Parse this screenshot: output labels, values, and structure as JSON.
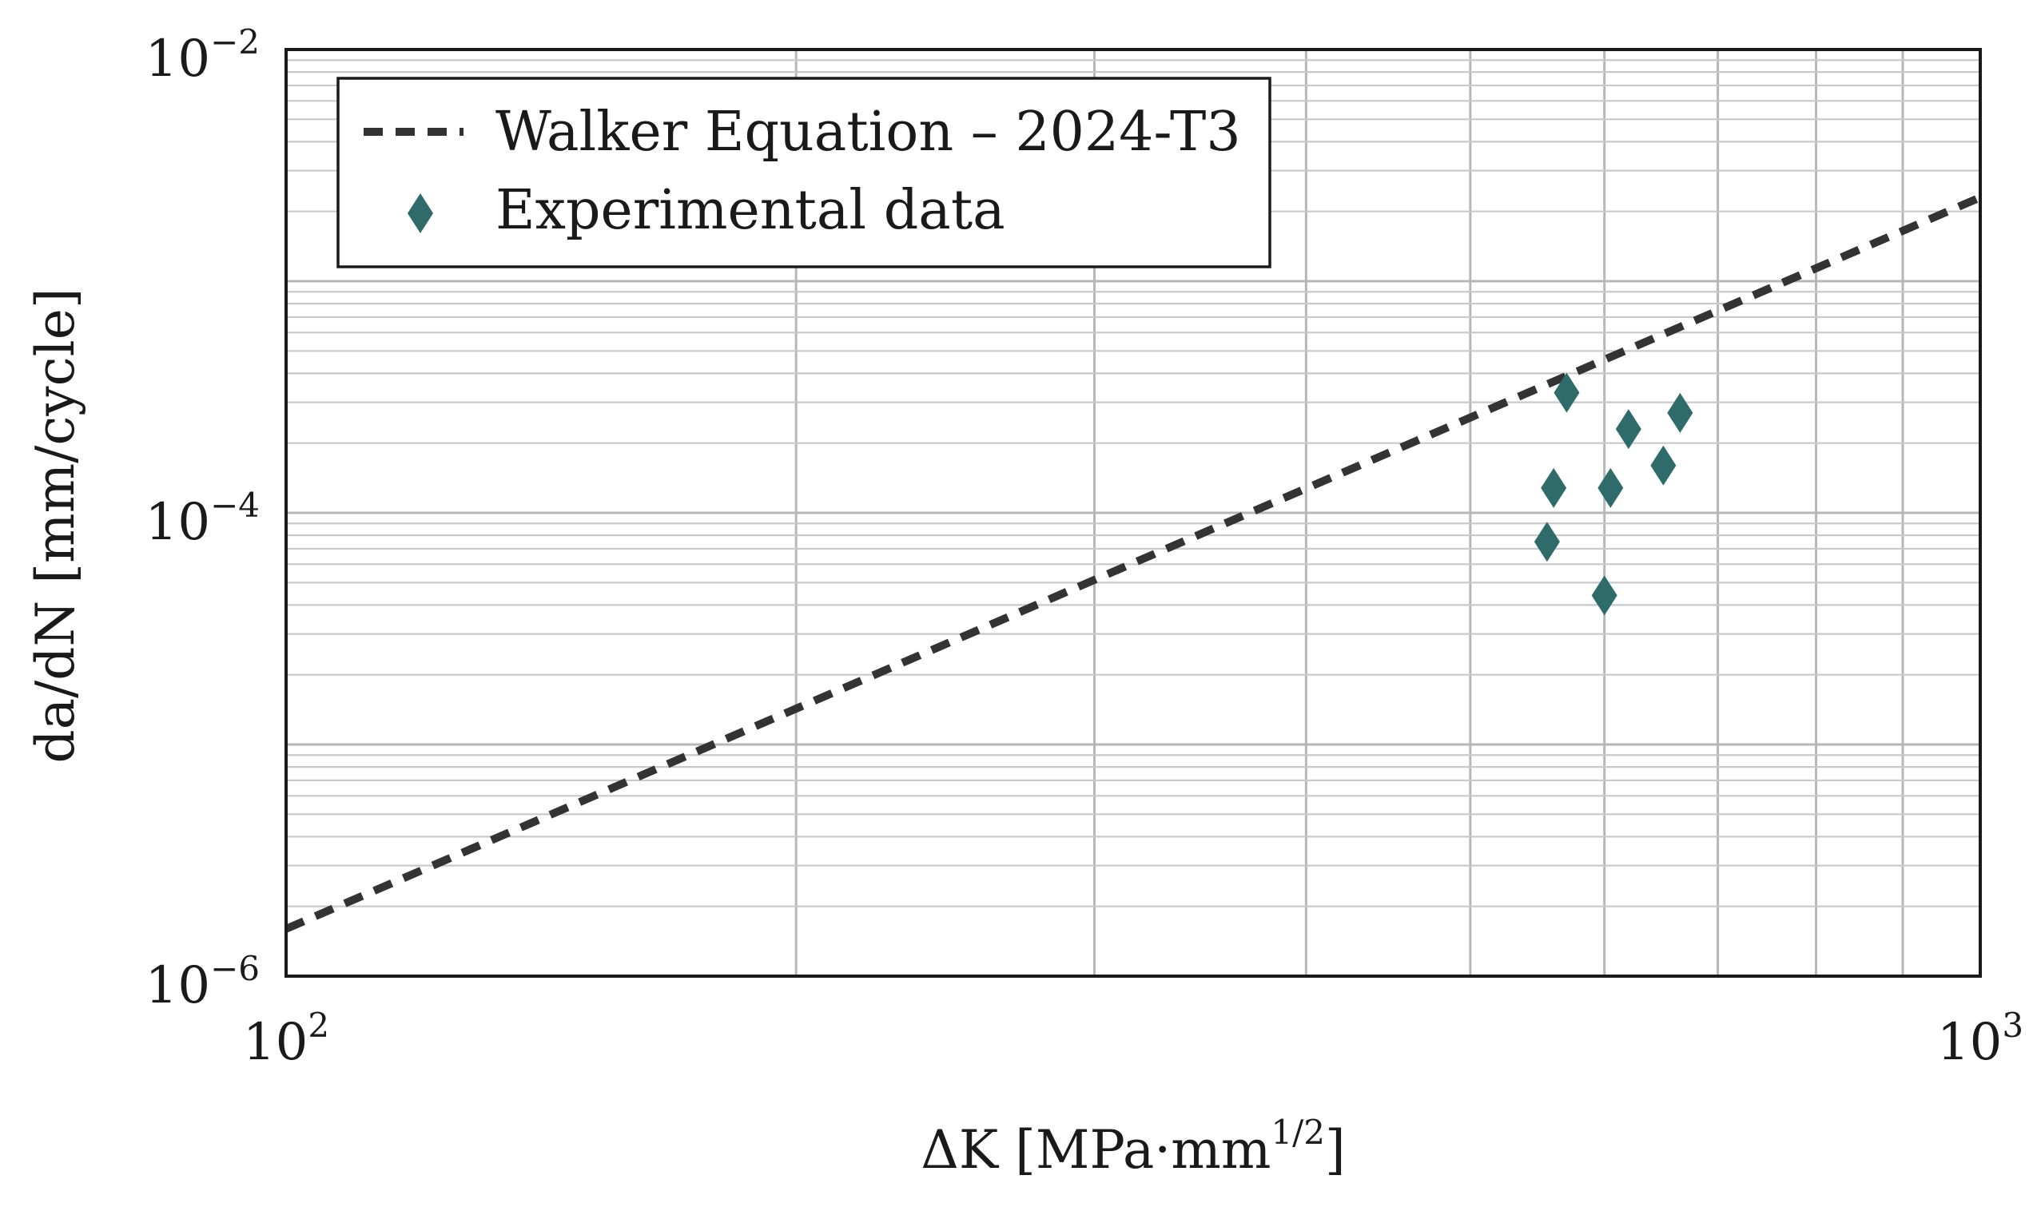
{
  "chart_data": {
    "type": "scatter",
    "x_scale": "log",
    "y_scale": "log",
    "xlim": [
      100,
      1000
    ],
    "ylim": [
      1e-06,
      0.01
    ],
    "grid": true,
    "xlabel": "ΔK [MPa·mm",
    "xlabel_sup": "1/2",
    "xlabel_end": "]",
    "ylabel": "da/dN [mm/cycle]",
    "x_ticks": [
      {
        "base": "10",
        "exp": "2",
        "value": 100
      },
      {
        "base": "10",
        "exp": "3",
        "value": 1000
      }
    ],
    "y_ticks": [
      {
        "base": "10",
        "exp": "−6",
        "value": 1e-06
      },
      {
        "base": "10",
        "exp": "−4",
        "value": 0.0001
      },
      {
        "base": "10",
        "exp": "−2",
        "value": 0.01
      }
    ],
    "legend_position": "top-left",
    "series": [
      {
        "name": "Walker Equation – 2024-T3",
        "kind": "line",
        "style": "dashed",
        "color": "#333333",
        "points": [
          [
            100,
            1.6e-06
          ],
          [
            1000,
            0.0023
          ]
        ]
      },
      {
        "name": "Experimental data",
        "kind": "scatter",
        "marker": "diamond",
        "color": "#2f6b6b",
        "points": [
          [
            555,
            7.5e-05
          ],
          [
            560,
            0.000128
          ],
          [
            570,
            0.00033
          ],
          [
            600,
            4.4e-05
          ],
          [
            605,
            0.000128
          ],
          [
            620,
            0.00023
          ],
          [
            650,
            0.00016
          ],
          [
            665,
            0.00027
          ]
        ]
      }
    ]
  }
}
